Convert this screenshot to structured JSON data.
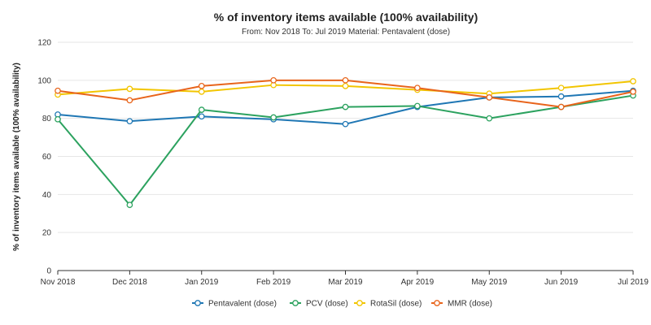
{
  "chart_data": {
    "type": "line",
    "title": "% of inventory items available (100% availability)",
    "subtitle": "From: Nov 2018 To: Jul 2019 Material: Pentavalent (dose)",
    "xlabel": "",
    "ylabel": "% of inventory items available (100% availability)",
    "categories": [
      "Nov 2018",
      "Dec 2018",
      "Jan 2019",
      "Feb 2019",
      "Mar 2019",
      "Apr 2019",
      "May 2019",
      "Jun 2019",
      "Jul 2019"
    ],
    "ylim": [
      0,
      120
    ],
    "yticks": [
      0,
      20,
      40,
      60,
      80,
      100,
      120
    ],
    "grid": "horizontal",
    "legend_position": "bottom",
    "series": [
      {
        "name": "Pentavalent (dose)",
        "color": "#1f77b4",
        "values": [
          82,
          78.5,
          81,
          79.5,
          77,
          86,
          91,
          91.5,
          94.5
        ]
      },
      {
        "name": "PCV (dose)",
        "color": "#2ca25f",
        "values": [
          79.5,
          34.5,
          84.5,
          80.5,
          86,
          86.5,
          80,
          86,
          92
        ]
      },
      {
        "name": "RotaSil (dose)",
        "color": "#f2c500",
        "values": [
          92.5,
          95.5,
          94,
          97.5,
          97,
          95,
          93,
          96,
          99.5
        ]
      },
      {
        "name": "MMR (dose)",
        "color": "#e8641b",
        "values": [
          94.5,
          89.5,
          97,
          100,
          100,
          96,
          91,
          86,
          94
        ]
      }
    ]
  }
}
